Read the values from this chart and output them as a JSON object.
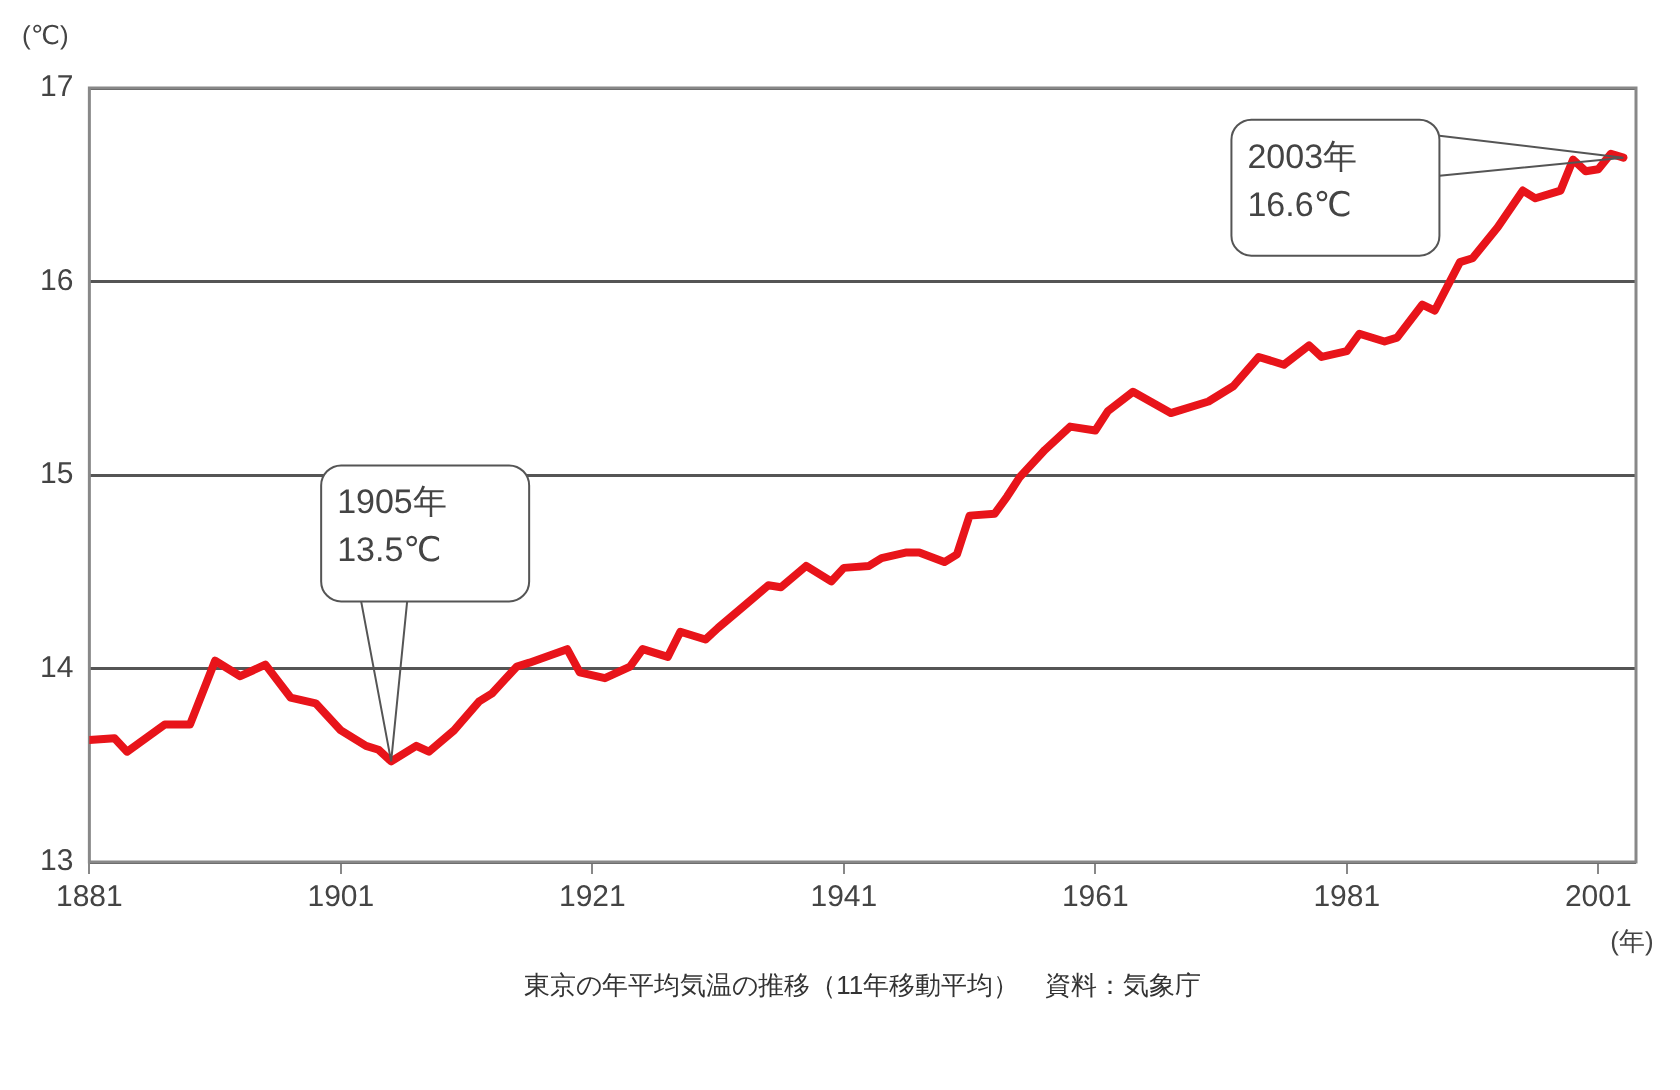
{
  "chart_data": {
    "type": "line",
    "xlabel": "(年)",
    "ylabel": "(℃)",
    "x": [
      1881,
      1883,
      1884,
      1887,
      1889,
      1891,
      1893,
      1895,
      1897,
      1899,
      1901,
      1903,
      1904,
      1905,
      1907,
      1908,
      1910,
      1912,
      1913,
      1915,
      1916,
      1919,
      1920,
      1922,
      1924,
      1925,
      1927,
      1928,
      1930,
      1931,
      1933,
      1935,
      1936,
      1938,
      1940,
      1941,
      1943,
      1944,
      1946,
      1947,
      1949,
      1950,
      1951,
      1953,
      1954,
      1955,
      1957,
      1959,
      1961,
      1962,
      1964,
      1967,
      1970,
      1972,
      1974,
      1976,
      1978,
      1979,
      1981,
      1982,
      1984,
      1985,
      1987,
      1988,
      1990,
      1991,
      1993,
      1995,
      1996,
      1998,
      1999,
      2000,
      2001,
      2002,
      2003
    ],
    "series": [
      {
        "color": "#e8141a",
        "values": [
          13.63,
          13.64,
          13.57,
          13.71,
          13.71,
          14.04,
          13.96,
          14.02,
          13.85,
          13.82,
          13.68,
          13.6,
          13.58,
          13.52,
          13.6,
          13.57,
          13.68,
          13.83,
          13.87,
          14.01,
          14.03,
          14.1,
          13.98,
          13.95,
          14.01,
          14.1,
          14.06,
          14.19,
          14.15,
          14.21,
          14.32,
          14.43,
          14.42,
          14.53,
          14.45,
          14.52,
          14.53,
          14.57,
          14.6,
          14.6,
          14.55,
          14.59,
          14.79,
          14.8,
          14.89,
          14.99,
          15.13,
          15.25,
          15.23,
          15.33,
          15.43,
          15.32,
          15.38,
          15.46,
          15.61,
          15.57,
          15.67,
          15.61,
          15.64,
          15.73,
          15.69,
          15.71,
          15.88,
          15.85,
          16.1,
          16.12,
          16.28,
          16.47,
          16.43,
          16.47,
          16.63,
          16.57,
          16.58,
          16.66,
          16.64
        ]
      }
    ],
    "xlim": [
      1881,
      2004
    ],
    "xticks": [
      1881,
      1901,
      1921,
      1941,
      1961,
      1981,
      2001
    ],
    "ylim": [
      13,
      17
    ],
    "yticks": [
      13,
      14,
      15,
      16,
      17
    ],
    "grid": "y",
    "legend": false,
    "marker": "none",
    "line_style": "solid",
    "annotations": [
      "1905年\n13.5℃",
      "2003年\n16.6℃",
      "東京の年平均気温の推移（11年移動平均）　資料：気象庁"
    ]
  }
}
